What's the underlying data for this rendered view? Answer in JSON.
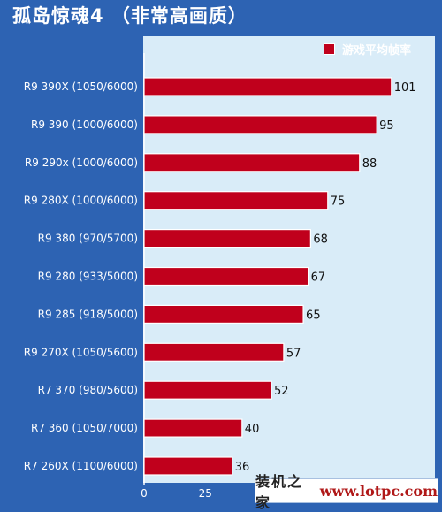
{
  "page": {
    "title": "孤岛惊魂4 （非常高画质）"
  },
  "legend": {
    "label": "游戏平均帧率",
    "color": "#c0001c"
  },
  "watermark": {
    "text_cn": "装机之家",
    "url": "www.lotpc.com"
  },
  "chart_data": {
    "type": "bar",
    "orientation": "horizontal",
    "title": "孤岛惊魂4 （非常高画质）",
    "categories": [
      "R9 390X (1050/6000)",
      "R9 390 (1000/6000)",
      "R9 290x (1000/6000)",
      "R9 280X (1000/6000)",
      "R9 380 (970/5700)",
      "R9 280 (933/5000)",
      "R9 285 (918/5000)",
      "R9 270X (1050/5600)",
      "R7 370 (980/5600)",
      "R7 360 (1050/7000)",
      "R7 260X (1100/6000)"
    ],
    "series": [
      {
        "name": "游戏平均帧率",
        "values": [
          101,
          95,
          88,
          75,
          68,
          67,
          65,
          57,
          52,
          40,
          36
        ]
      }
    ],
    "x_ticks": [
      "0",
      "25"
    ],
    "xlim": [
      0,
      110
    ],
    "bar_color": "#c0001c",
    "legend_position": "top-right",
    "grid": false
  }
}
